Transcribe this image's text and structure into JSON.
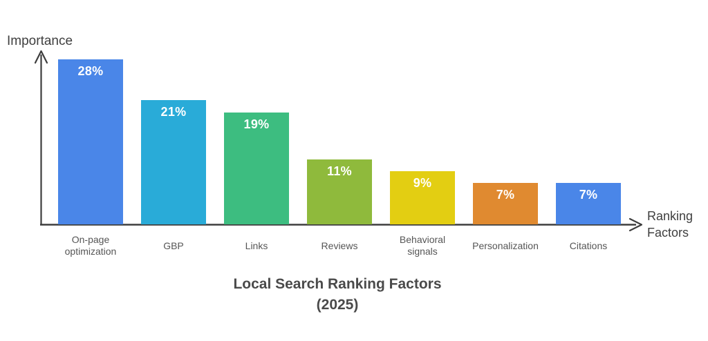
{
  "chart": {
    "title_line1": "Local Search Ranking Factors",
    "title_line2": "(2025)",
    "y_axis_label": "Importance",
    "x_axis_label_line1": "Ranking",
    "x_axis_label_line2": "Factors",
    "axis_color": "#3d3d3d",
    "value_label_color": "#ffffff",
    "category_label_color": "#555555",
    "title_color": "#4a4a4a"
  },
  "chart_data": {
    "type": "bar",
    "title": "Local Search Ranking Factors (2025)",
    "xlabel": "Ranking Factors",
    "ylabel": "Importance",
    "categories": [
      "On-page optimization",
      "GBP",
      "Links",
      "Reviews",
      "Behavioral signals",
      "Personalization",
      "Citations"
    ],
    "values": [
      28,
      21,
      19,
      11,
      9,
      7,
      7
    ],
    "unit": "%",
    "value_labels": [
      "28%",
      "21%",
      "19%",
      "11%",
      "9%",
      "7%",
      "7%"
    ],
    "bar_colors": [
      "#4a86e8",
      "#29abd8",
      "#3dbd80",
      "#8fba3c",
      "#e3ce12",
      "#e08a30",
      "#4a86e8"
    ],
    "ylim": [
      0,
      29
    ],
    "grid": false,
    "legend": null
  }
}
